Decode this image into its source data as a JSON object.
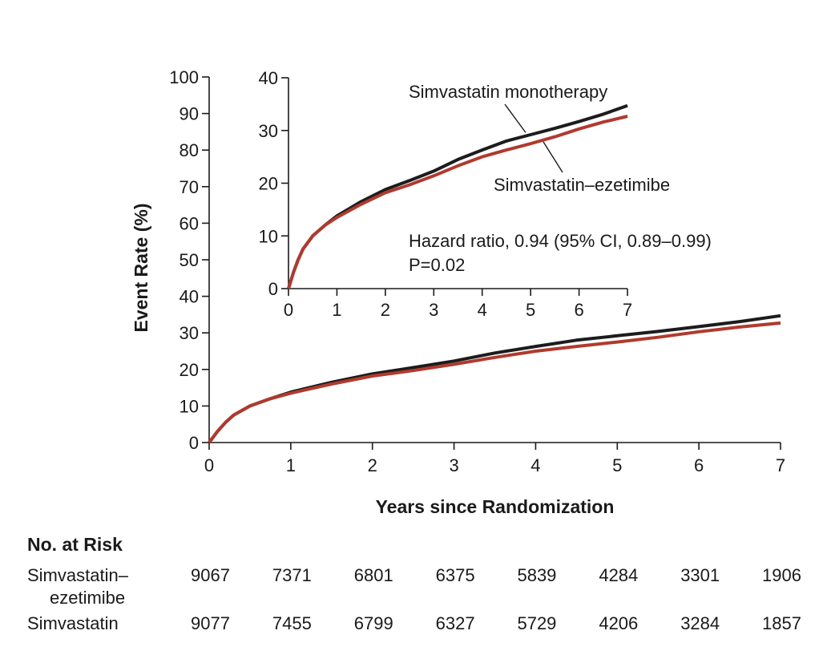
{
  "chart_data": [
    {
      "type": "line",
      "panel": "main",
      "xlabel": "Years since Randomization",
      "ylabel": "Event Rate (%)",
      "xlim": [
        0,
        7
      ],
      "ylim": [
        0,
        100
      ],
      "x_ticks": [
        "0",
        "1",
        "2",
        "3",
        "4",
        "5",
        "6",
        "7"
      ],
      "y_ticks": [
        "0",
        "10",
        "20",
        "30",
        "40",
        "50",
        "60",
        "70",
        "80",
        "90",
        "100"
      ],
      "grid": false,
      "series": [
        {
          "name": "Simvastatin monotherapy",
          "color": "#1c1c1c",
          "x": [
            0,
            0.1,
            0.2,
            0.3,
            0.5,
            0.75,
            1,
            1.5,
            2,
            2.5,
            3,
            3.5,
            4,
            4.5,
            5,
            5.5,
            6,
            6.5,
            7
          ],
          "y": [
            0,
            3,
            5.5,
            7.5,
            10,
            12,
            13.8,
            16.5,
            18.8,
            20.5,
            22.3,
            24.5,
            26.3,
            28,
            29.2,
            30.4,
            31.7,
            33.1,
            34.7
          ]
        },
        {
          "name": "Simvastatin–ezetimibe",
          "color": "#b03a2e",
          "x": [
            0,
            0.1,
            0.2,
            0.3,
            0.5,
            0.75,
            1,
            1.5,
            2,
            2.5,
            3,
            3.5,
            4,
            4.5,
            5,
            5.5,
            6,
            6.5,
            7
          ],
          "y": [
            0,
            3,
            5.5,
            7.5,
            10,
            12,
            13.5,
            16,
            18.2,
            19.7,
            21.4,
            23.3,
            25,
            26.3,
            27.5,
            28.8,
            30.3,
            31.6,
            32.7
          ]
        }
      ]
    },
    {
      "type": "line",
      "panel": "inset",
      "xlim": [
        0,
        7
      ],
      "ylim": [
        0,
        40
      ],
      "x_ticks": [
        "0",
        "1",
        "2",
        "3",
        "4",
        "5",
        "6",
        "7"
      ],
      "y_ticks": [
        "0",
        "10",
        "20",
        "30",
        "40"
      ],
      "series_labels": [
        "Simvastatin monotherapy",
        "Simvastatin–ezetimibe"
      ],
      "annotations": [
        "Hazard ratio, 0.94 (95% CI, 0.89–0.99)",
        "P=0.02"
      ]
    }
  ],
  "risk_table": {
    "title": "No. at Risk",
    "rows": [
      {
        "label_line1": "Simvastatin–",
        "label_line2": "ezetimibe",
        "values": [
          "9067",
          "7371",
          "6801",
          "6375",
          "5839",
          "4284",
          "3301",
          "1906"
        ]
      },
      {
        "label_line1": "Simvastatin",
        "label_line2": "",
        "values": [
          "9077",
          "7455",
          "6799",
          "6327",
          "5729",
          "4206",
          "3284",
          "1857"
        ]
      }
    ]
  }
}
